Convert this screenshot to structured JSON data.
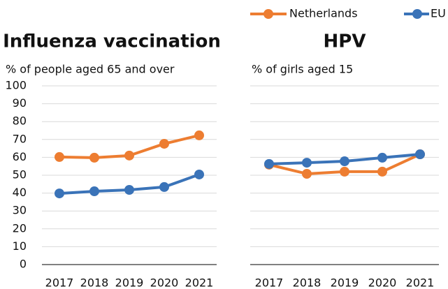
{
  "chart_data": [
    {
      "type": "line",
      "title": "Influenza vaccination",
      "subtitle": "% of people aged 65 and over",
      "categories": [
        "2017",
        "2018",
        "2019",
        "2020",
        "2021"
      ],
      "series": [
        {
          "name": "Netherlands",
          "color": "#ED7D31",
          "values": [
            60.2,
            59.8,
            61,
            67.6,
            72.3
          ]
        },
        {
          "name": "EU",
          "color": "#3A73B8",
          "values": [
            39.8,
            41,
            41.8,
            43.4,
            50.4
          ]
        }
      ],
      "ylim": [
        0,
        100
      ],
      "yticks": [
        0,
        10,
        20,
        30,
        40,
        50,
        60,
        70,
        80,
        90,
        100
      ],
      "grid": true,
      "legend": "top-right"
    },
    {
      "type": "line",
      "title": "HPV",
      "subtitle": "% of girls aged 15",
      "categories": [
        "2017",
        "2018",
        "2019",
        "2020",
        "2021"
      ],
      "series": [
        {
          "name": "Netherlands",
          "color": "#ED7D31",
          "values": [
            55.9,
            50.8,
            52,
            52,
            61.7
          ]
        },
        {
          "name": "EU",
          "color": "#3A73B8",
          "values": [
            56.3,
            57,
            57.8,
            59.8,
            61.7
          ]
        }
      ],
      "ylim": [
        0,
        100
      ],
      "yticks": [
        0,
        10,
        20,
        30,
        40,
        50,
        60,
        70,
        80,
        90,
        100
      ],
      "grid": true
    }
  ]
}
